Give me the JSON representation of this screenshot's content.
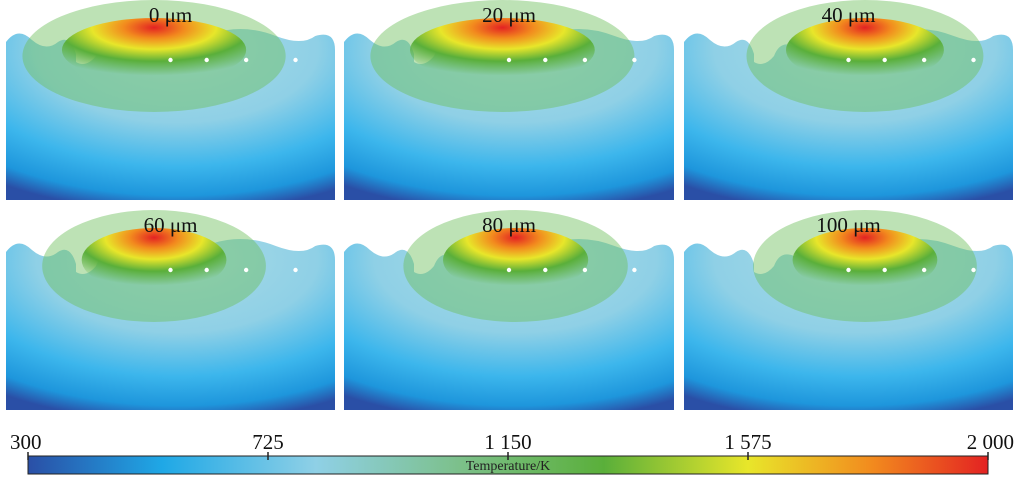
{
  "panels": [
    {
      "title": "0 μm"
    },
    {
      "title": "20 μm"
    },
    {
      "title": "40 μm"
    },
    {
      "title": "60 μm"
    },
    {
      "title": "80 μm"
    },
    {
      "title": "100 μm"
    }
  ],
  "colorbar": {
    "label": "Temperature/K",
    "min": 300,
    "max": 2000,
    "ticks": [
      {
        "value": 300,
        "label": "300"
      },
      {
        "value": 725,
        "label": "725"
      },
      {
        "value": 1150,
        "label": "1 150"
      },
      {
        "value": 1575,
        "label": "1 575"
      },
      {
        "value": 2000,
        "label": "2 000"
      }
    ],
    "colors": [
      "#2a4fa6",
      "#1fa8e6",
      "#8fd0e6",
      "#7cc08a",
      "#5aaf3a",
      "#e8e62a",
      "#f28a1e",
      "#e32222"
    ]
  },
  "colors": {
    "background": "#ffffff",
    "cold": "#2a4fa6",
    "hot": "#e32222"
  }
}
